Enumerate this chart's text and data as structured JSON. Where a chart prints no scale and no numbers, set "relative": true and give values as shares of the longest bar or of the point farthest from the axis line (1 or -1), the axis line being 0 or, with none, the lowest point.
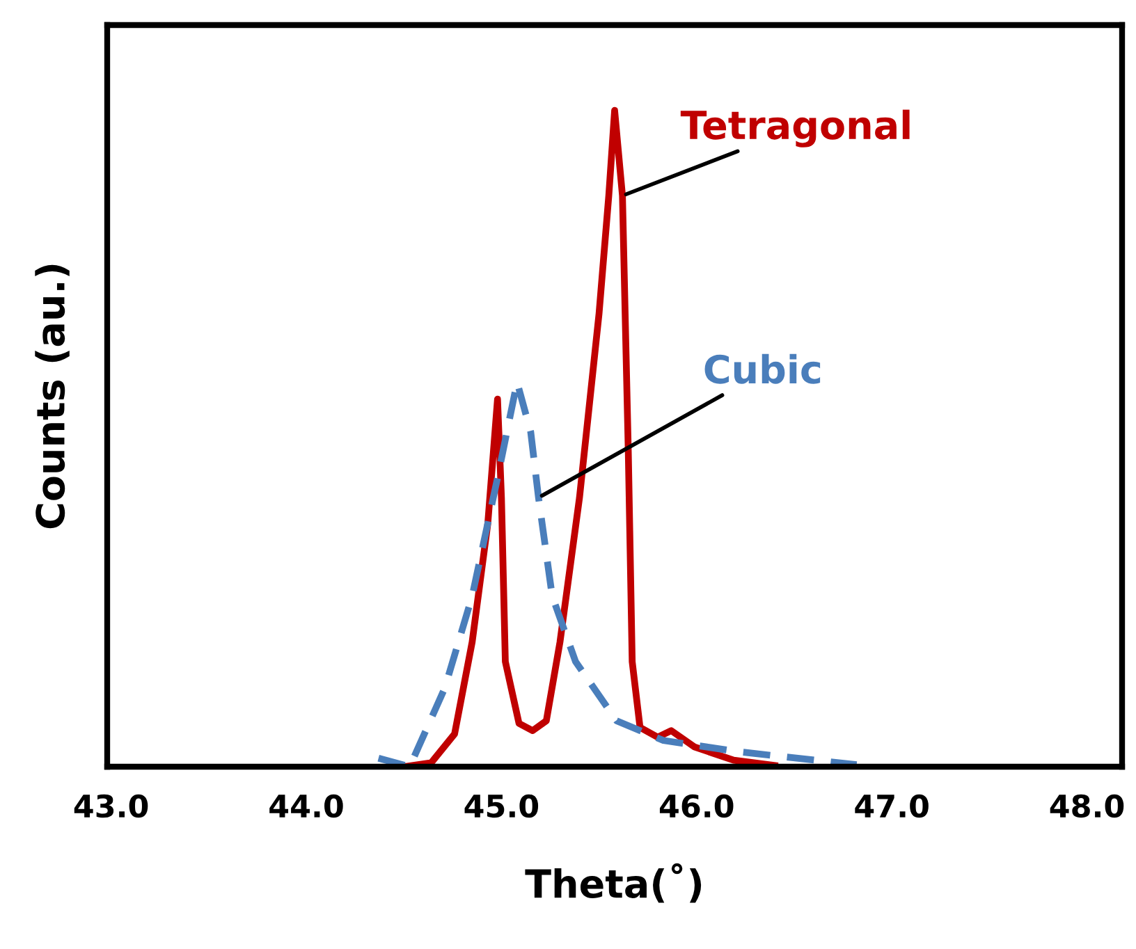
{
  "chart_data": {
    "type": "line",
    "relative": true,
    "xlabel": "Theta(˚)",
    "ylabel": "Counts (au.)",
    "xlim": [
      42.98,
      48.18
    ],
    "xticks": [
      {
        "value": 43,
        "label": "43.0"
      },
      {
        "value": 44,
        "label": "44.0"
      },
      {
        "value": 45,
        "label": "45.0"
      },
      {
        "value": 46,
        "label": "46.0"
      },
      {
        "value": 47,
        "label": "47.0"
      },
      {
        "value": 48,
        "label": "48.0"
      }
    ],
    "grid": false,
    "legend": false,
    "series": [
      {
        "name": "Tetragonal",
        "color": "#c00000",
        "line_style": "solid",
        "x": [
          44.5,
          44.64,
          44.76,
          44.85,
          44.93,
          44.98,
          45.0,
          45.02,
          45.09,
          45.16,
          45.23,
          45.3,
          45.4,
          45.5,
          45.55,
          45.58,
          45.62,
          45.65,
          45.67,
          45.71,
          45.8,
          45.87,
          45.99,
          46.19,
          46.4
        ],
        "values": [
          0.0,
          0.006,
          0.05,
          0.19,
          0.37,
          0.56,
          0.41,
          0.16,
          0.066,
          0.055,
          0.07,
          0.19,
          0.41,
          0.69,
          0.87,
          1.0,
          0.87,
          0.48,
          0.16,
          0.06,
          0.045,
          0.055,
          0.03,
          0.01,
          0.002
        ]
      },
      {
        "name": "Cubic",
        "color": "#4a7ebb",
        "line_style": "dashed",
        "x": [
          44.37,
          44.53,
          44.71,
          44.85,
          44.98,
          45.08,
          45.15,
          45.19,
          45.26,
          45.38,
          45.59,
          45.83,
          46.21,
          46.82
        ],
        "values": [
          0.013,
          0.0,
          0.12,
          0.26,
          0.44,
          0.586,
          0.51,
          0.41,
          0.26,
          0.16,
          0.07,
          0.04,
          0.023,
          0.003
        ]
      }
    ]
  }
}
